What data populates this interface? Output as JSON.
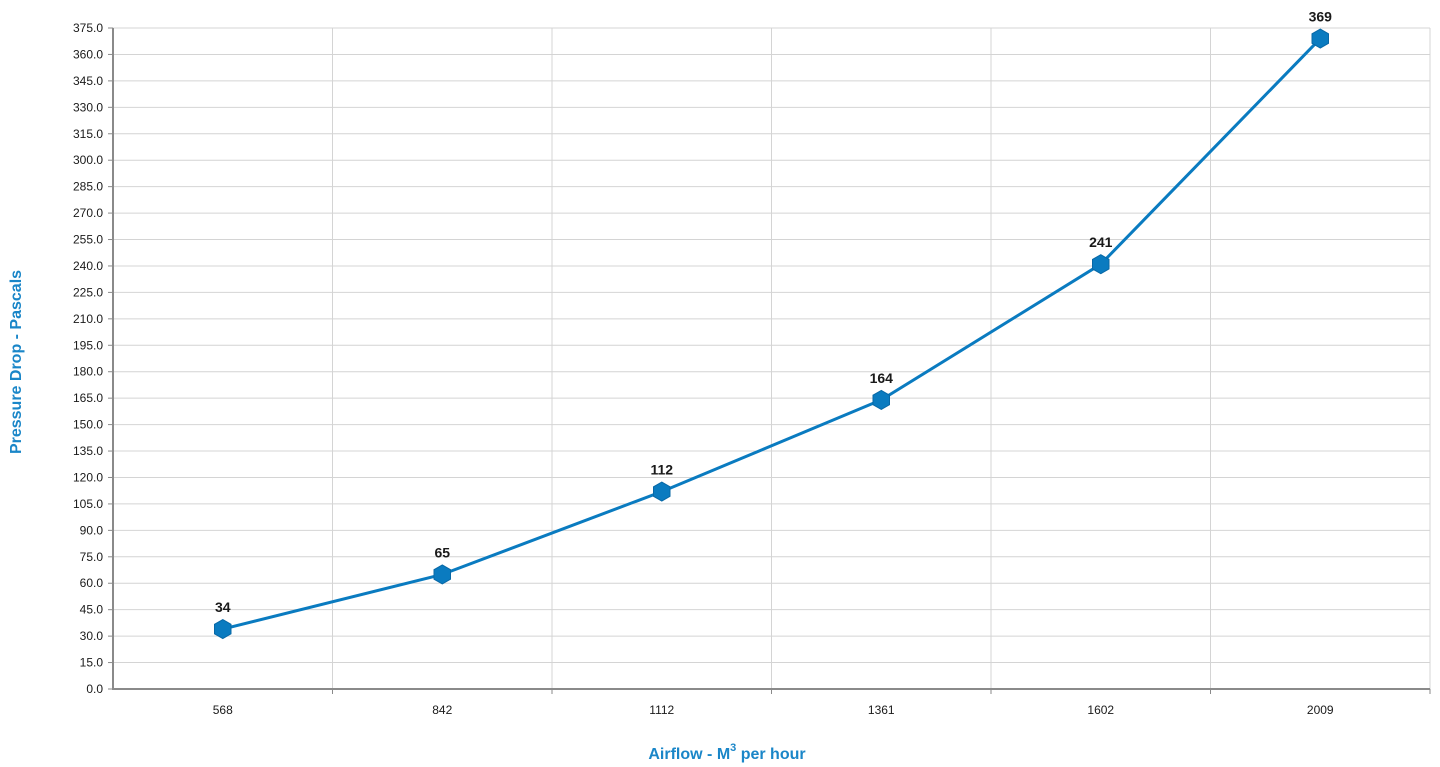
{
  "colors": {
    "series": "#0a7bc0",
    "axis_title": "#1a86c8",
    "title": "#0f77c3",
    "grid": "#d4d4d4",
    "axis": "#8a8a8a"
  },
  "chart_data": {
    "type": "line",
    "title": "",
    "xlabel_main": "Airflow - M",
    "xlabel_sup": "3",
    "xlabel_rest": " per hour",
    "ylabel": "Pressure Drop - Pascals",
    "categories": [
      "568",
      "842",
      "1112",
      "1361",
      "1602",
      "2009"
    ],
    "series": [
      {
        "values": [
          34,
          65,
          112,
          164,
          241,
          369
        ]
      }
    ],
    "ylim": [
      0,
      375
    ],
    "ytick_step": 15,
    "grid": true,
    "legend": "none",
    "marker": "hexagon"
  }
}
